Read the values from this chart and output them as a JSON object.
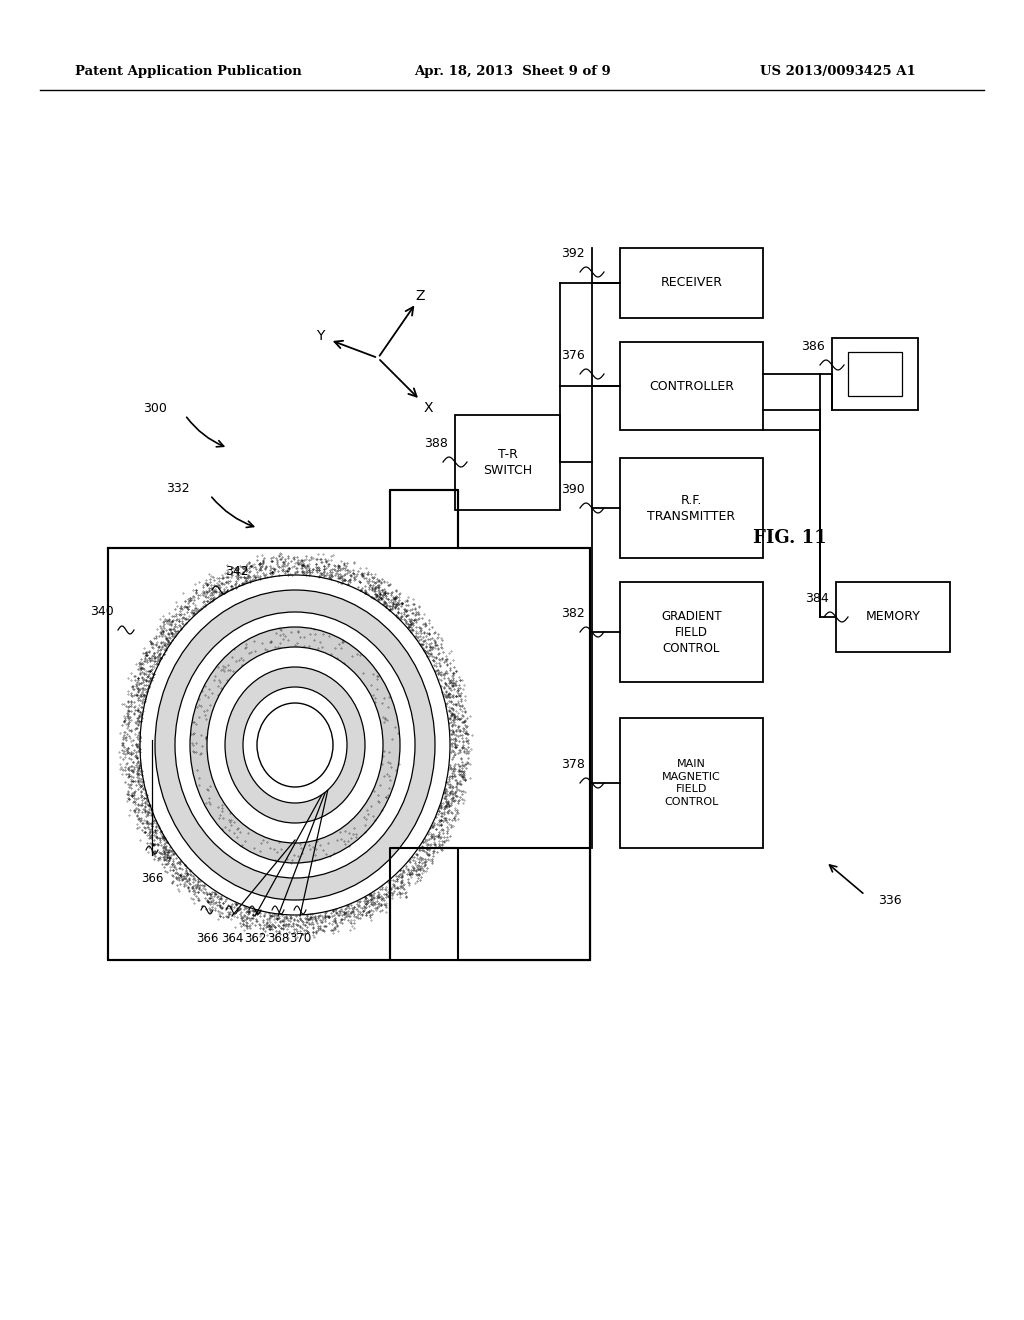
{
  "bg_color": "#ffffff",
  "header_left": "Patent Application Publication",
  "header_center": "Apr. 18, 2013  Sheet 9 of 9",
  "header_right": "US 2013/0093425 A1",
  "fig_label": "FIG. 11",
  "lw": 1.3
}
